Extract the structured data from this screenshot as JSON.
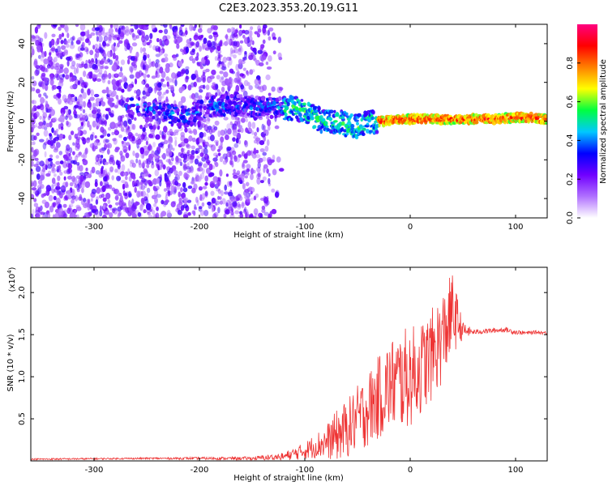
{
  "title": "C2E3.2023.353.20.19.G11",
  "chart_data": [
    {
      "type": "heatmap",
      "xlabel": "Height of straight line (km)",
      "ylabel": "Frequency (Hz)",
      "xlim": [
        -360,
        130
      ],
      "ylim": [
        -50,
        50
      ],
      "xticks": [
        -300,
        -200,
        -100,
        0,
        100
      ],
      "yticks": [
        -40,
        -20,
        0,
        20,
        40
      ],
      "colorbar": {
        "label": "Normalized spectral amplitude",
        "range": [
          0.0,
          1.0
        ],
        "ticks": [
          "0.0",
          "0.2",
          "0.4",
          "0.6",
          "0.8"
        ],
        "colormap": [
          "#ffffff",
          "#b070ff",
          "#7000ff",
          "#0000ff",
          "#00c8ff",
          "#00ff40",
          "#ffff00",
          "#ff8000",
          "#ff0000",
          "#ff0080"
        ]
      },
      "ridge": {
        "height_km": [
          -265,
          -250,
          -230,
          -210,
          -195,
          -180,
          -160,
          -140,
          -120,
          -100,
          -90,
          -80,
          -70,
          -60,
          -50,
          -40,
          -30,
          -20,
          -10,
          0,
          20,
          40,
          60,
          80,
          100,
          130
        ],
        "frequency_hz": [
          8,
          6,
          4,
          2,
          7,
          8,
          8,
          7,
          7,
          6,
          2,
          -1,
          0,
          -2,
          -3,
          -1,
          0,
          0,
          1,
          1,
          1,
          1,
          1,
          1,
          2,
          1
        ]
      }
    },
    {
      "type": "line",
      "xlabel": "Height of straight line (km)",
      "ylabel": "SNR (10 * v/v)",
      "scale_label": "(x10",
      "scale_exp": "4",
      "scale_close": ")",
      "xlim": [
        -360,
        130
      ],
      "ylim": [
        0,
        2.3
      ],
      "xticks": [
        -300,
        -200,
        -100,
        0,
        100
      ],
      "yticks": [
        0.5,
        1.0,
        1.5,
        2.0
      ],
      "series": [
        {
          "color": "#ee3333",
          "x": [
            -360,
            -250,
            -150,
            -120,
            -100,
            -90,
            -80,
            -70,
            -60,
            -50,
            -40,
            -30,
            -20,
            -10,
            0,
            10,
            20,
            30,
            40,
            50,
            60,
            70,
            80,
            90,
            100,
            110,
            120,
            130
          ],
          "y": [
            0.02,
            0.03,
            0.03,
            0.05,
            0.12,
            0.18,
            0.22,
            0.3,
            0.38,
            0.5,
            0.62,
            0.75,
            0.9,
            0.95,
            1.0,
            1.1,
            1.25,
            1.45,
            1.75,
            1.55,
            1.53,
            1.54,
            1.55,
            1.56,
            1.53,
            1.52,
            1.53,
            1.52
          ],
          "spread": [
            0.01,
            0.01,
            0.02,
            0.05,
            0.1,
            0.15,
            0.2,
            0.3,
            0.35,
            0.4,
            0.45,
            0.5,
            0.55,
            0.6,
            0.6,
            0.55,
            0.55,
            0.55,
            0.5,
            0.1,
            0.03,
            0.03,
            0.03,
            0.03,
            0.03,
            0.02,
            0.02,
            0.02
          ]
        }
      ]
    }
  ]
}
